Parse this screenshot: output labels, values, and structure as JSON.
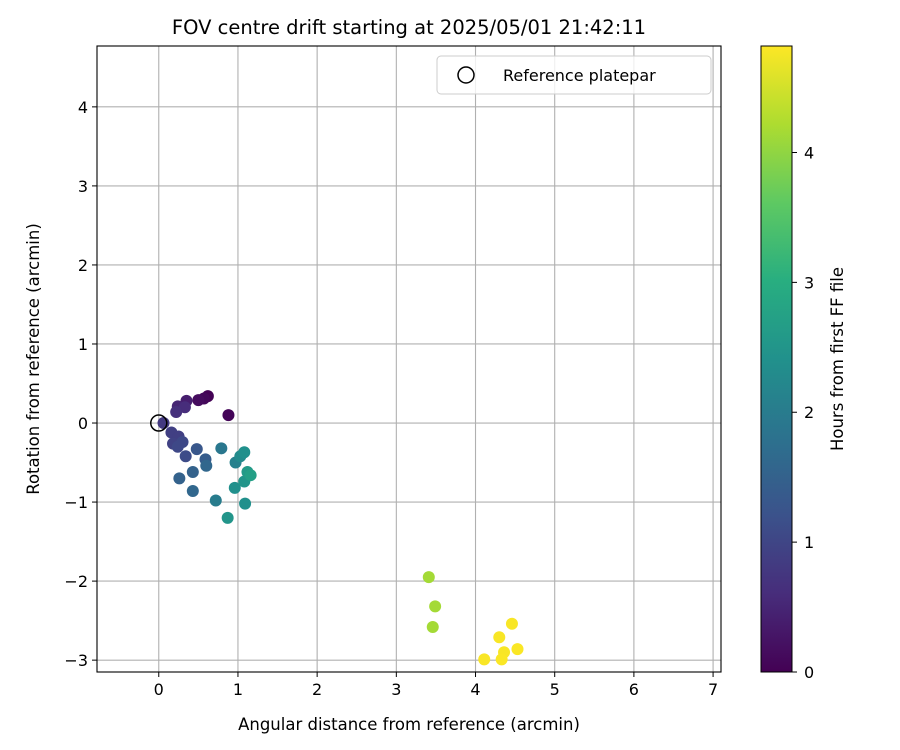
{
  "chart_data": {
    "type": "scatter",
    "title": "FOV centre drift starting at 2025/05/01 21:42:11",
    "xlabel": "Angular distance from reference (arcmin)",
    "ylabel": "Rotation from reference (arcmin)",
    "xlim": [
      -0.78,
      7.1
    ],
    "ylim": [
      -3.15,
      4.77
    ],
    "xticks": [
      0,
      1,
      2,
      3,
      4,
      5,
      6,
      7
    ],
    "yticks": [
      -3,
      -2,
      -1,
      0,
      1,
      2,
      3,
      4
    ],
    "grid": true,
    "legend": {
      "position": "top-right",
      "label": "Reference platepar"
    },
    "reference_point": {
      "x": 0,
      "y": 0
    },
    "colorbar": {
      "label": "Hours from first FF file",
      "range": [
        0,
        4.82
      ],
      "ticks": [
        0,
        1,
        2,
        3,
        4
      ],
      "colormap": "viridis"
    },
    "points": [
      {
        "x": 0.62,
        "y": 0.34,
        "hours": 0.02
      },
      {
        "x": 0.88,
        "y": 0.1,
        "hours": 0.06
      },
      {
        "x": 0.57,
        "y": 0.31,
        "hours": 0.1
      },
      {
        "x": 0.5,
        "y": 0.29,
        "hours": 0.15
      },
      {
        "x": 0.35,
        "y": 0.28,
        "hours": 0.4
      },
      {
        "x": 0.24,
        "y": 0.21,
        "hours": 0.5
      },
      {
        "x": 0.33,
        "y": 0.2,
        "hours": 0.6
      },
      {
        "x": 0.22,
        "y": 0.14,
        "hours": 0.65
      },
      {
        "x": 0.06,
        "y": 0.0,
        "hours": 0.8
      },
      {
        "x": 0.16,
        "y": -0.12,
        "hours": 0.9
      },
      {
        "x": 0.25,
        "y": -0.17,
        "hours": 0.9
      },
      {
        "x": 0.18,
        "y": -0.26,
        "hours": 0.95
      },
      {
        "x": 0.3,
        "y": -0.24,
        "hours": 1.05
      },
      {
        "x": 0.24,
        "y": -0.3,
        "hours": 1.05
      },
      {
        "x": 0.34,
        "y": -0.42,
        "hours": 1.1
      },
      {
        "x": 0.48,
        "y": -0.33,
        "hours": 1.3
      },
      {
        "x": 0.59,
        "y": -0.46,
        "hours": 1.4
      },
      {
        "x": 0.43,
        "y": -0.62,
        "hours": 1.5
      },
      {
        "x": 0.6,
        "y": -0.54,
        "hours": 1.6
      },
      {
        "x": 0.26,
        "y": -0.7,
        "hours": 1.5
      },
      {
        "x": 0.43,
        "y": -0.86,
        "hours": 1.6
      },
      {
        "x": 0.79,
        "y": -0.32,
        "hours": 1.9
      },
      {
        "x": 0.97,
        "y": -0.5,
        "hours": 2.1
      },
      {
        "x": 0.72,
        "y": -0.98,
        "hours": 2.0
      },
      {
        "x": 1.03,
        "y": -0.42,
        "hours": 2.3
      },
      {
        "x": 1.08,
        "y": -0.37,
        "hours": 2.4
      },
      {
        "x": 0.96,
        "y": -0.82,
        "hours": 2.4
      },
      {
        "x": 1.08,
        "y": -0.74,
        "hours": 2.5
      },
      {
        "x": 1.12,
        "y": -0.62,
        "hours": 2.6
      },
      {
        "x": 1.16,
        "y": -0.66,
        "hours": 2.7
      },
      {
        "x": 0.87,
        "y": -1.2,
        "hours": 2.5
      },
      {
        "x": 1.09,
        "y": -1.02,
        "hours": 2.4
      },
      {
        "x": 3.41,
        "y": -1.95,
        "hours": 4.15
      },
      {
        "x": 3.49,
        "y": -2.32,
        "hours": 4.15
      },
      {
        "x": 3.46,
        "y": -2.58,
        "hours": 4.15
      },
      {
        "x": 4.46,
        "y": -2.54,
        "hours": 4.78
      },
      {
        "x": 4.3,
        "y": -2.71,
        "hours": 4.78
      },
      {
        "x": 4.53,
        "y": -2.86,
        "hours": 4.8
      },
      {
        "x": 4.36,
        "y": -2.9,
        "hours": 4.78
      },
      {
        "x": 4.11,
        "y": -2.99,
        "hours": 4.79
      },
      {
        "x": 4.33,
        "y": -2.99,
        "hours": 4.8
      }
    ]
  }
}
